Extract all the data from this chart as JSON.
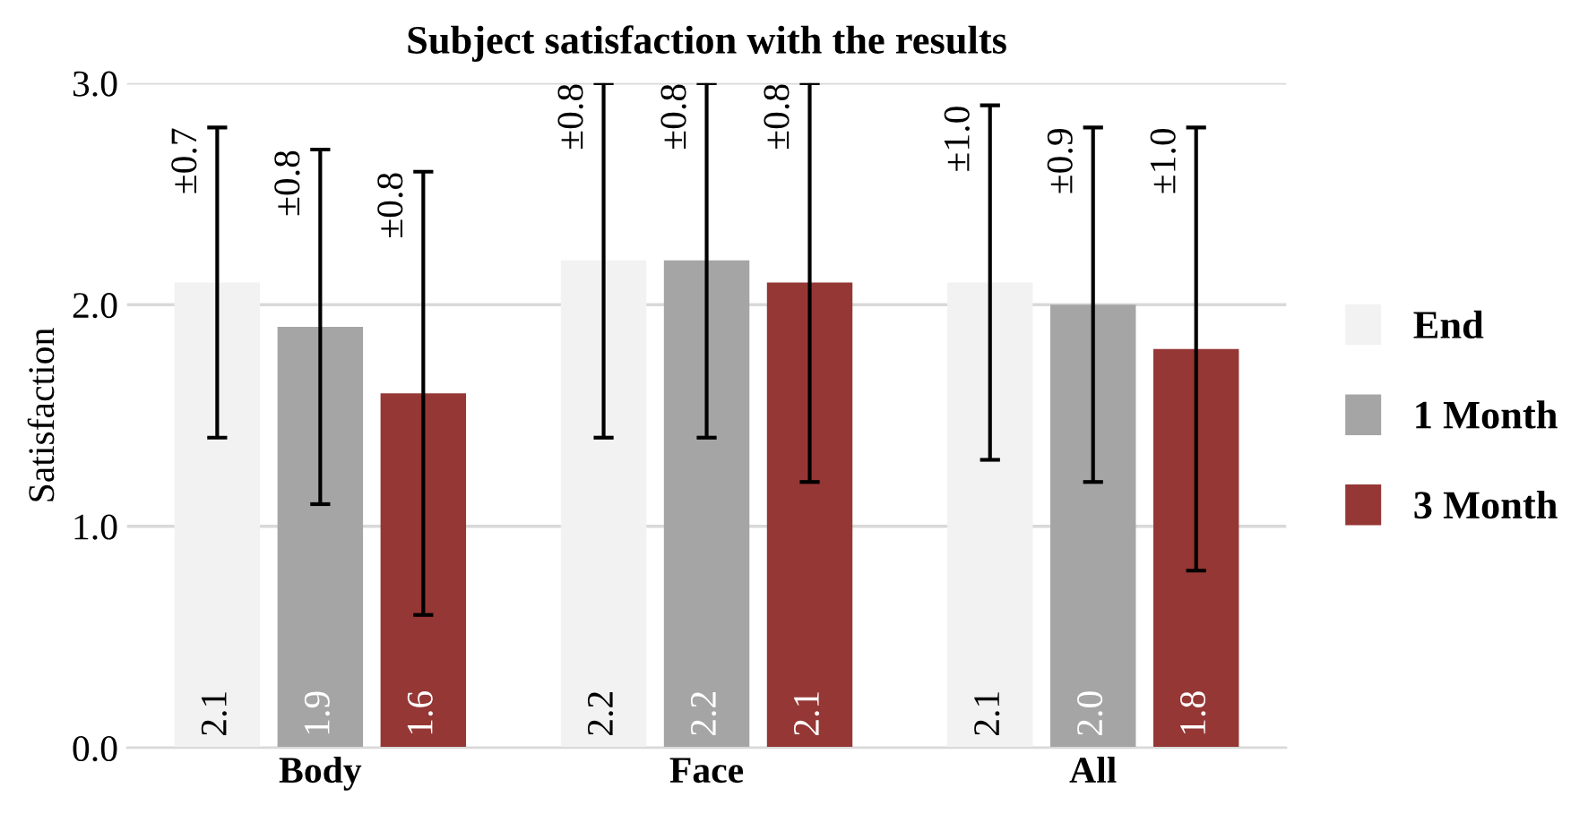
{
  "chart_data": {
    "type": "bar",
    "title": "Subject satisfaction with the results",
    "ylabel": "Satisfaction",
    "categories": [
      "Body",
      "Face",
      "All"
    ],
    "series": [
      {
        "name": "End",
        "color": "#f2f2f2",
        "values": [
          2.1,
          2.2,
          2.1
        ],
        "errors": [
          [
            1.4,
            2.8
          ],
          [
            1.4,
            3.0
          ],
          [
            1.3,
            2.9
          ]
        ],
        "value_labels": [
          "2.1",
          "2.2",
          "2.1"
        ]
      },
      {
        "name": "1 Month",
        "color": "#a5a5a5",
        "values": [
          1.9,
          2.2,
          2.0
        ],
        "errors": [
          [
            1.1,
            2.7
          ],
          [
            1.4,
            3.0
          ],
          [
            1.2,
            2.8
          ]
        ],
        "value_labels": [
          "1.9",
          "2.2",
          "2.0"
        ]
      },
      {
        "name": "3 Month",
        "color": "#953735",
        "values": [
          1.6,
          2.1,
          1.8
        ],
        "errors": [
          [
            0.6,
            2.6
          ],
          [
            1.2,
            3.0
          ],
          [
            0.8,
            2.8
          ]
        ],
        "value_labels": [
          "1.6",
          "2.1",
          "1.8"
        ]
      }
    ],
    "annotations": [
      "±0.7",
      "±0.8",
      "±0.8",
      "±0.8",
      "±0.8",
      "±0.8",
      "±1.0",
      "±0.9",
      "±1.0"
    ],
    "ylim": [
      0,
      3.0
    ],
    "yticks": [
      {
        "value": 0,
        "label": "0.0"
      },
      {
        "value": 1,
        "label": "1.0"
      },
      {
        "value": 2,
        "label": "2.0"
      },
      {
        "value": 3,
        "label": "3.0"
      }
    ],
    "grid": "y",
    "legend": "right"
  }
}
